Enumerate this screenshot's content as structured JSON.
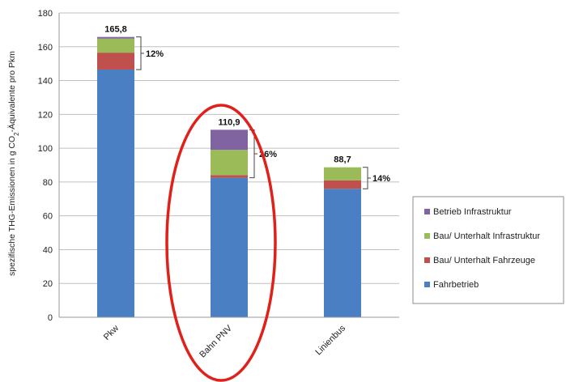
{
  "chart_data": {
    "type": "bar",
    "stacked": true,
    "categories": [
      "Pkw",
      "Bahn PNV",
      "Linienbus"
    ],
    "series": [
      {
        "name": "Fahrbetrieb",
        "color": "#4a7fc3",
        "values": [
          146.5,
          82.5,
          76.0
        ]
      },
      {
        "name": "Bau/ Unterhalt Fahrzeuge",
        "color": "#c0504d",
        "values": [
          10.0,
          1.5,
          5.0
        ]
      },
      {
        "name": "Bau/ Unterhalt Infrastruktur",
        "color": "#9bbb59",
        "values": [
          8.3,
          15.0,
          7.7
        ]
      },
      {
        "name": "Betrieb Infrastruktur",
        "color": "#8064a2",
        "values": [
          1.0,
          11.9,
          0.0
        ]
      }
    ],
    "totals": [
      "165,8",
      "110,9",
      "88,7"
    ],
    "percent_labels": [
      "12%",
      "26%",
      "14%"
    ],
    "ylabel_parts": [
      "spezifische THG-Emissionen in g CO",
      "2",
      "-Äquivalente pro  Pkm"
    ],
    "yticks": [
      "0",
      "20",
      "40",
      "60",
      "80",
      "100",
      "120",
      "140",
      "160",
      "180"
    ],
    "ylim": [
      0,
      180
    ],
    "grid": true,
    "legend": {
      "position": "right",
      "items": [
        "Betrieb Infrastruktur",
        "Bau/ Unterhalt Infrastruktur",
        "Bau/ Unterhalt Fahrzeuge",
        "Fahrbetrieb"
      ]
    },
    "annotation": {
      "type": "ellipse",
      "target": "Bahn PNV",
      "color": "#e0201a"
    }
  }
}
